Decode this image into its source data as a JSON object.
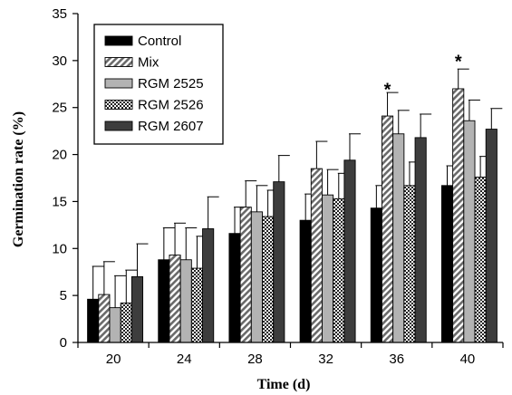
{
  "chart_data": {
    "type": "bar",
    "xlabel": "Time (d)",
    "ylabel": "Germination rate (%)",
    "ylim": [
      0,
      35
    ],
    "yticks": [
      0,
      5,
      10,
      15,
      20,
      25,
      30,
      35
    ],
    "categories": [
      "20",
      "24",
      "28",
      "32",
      "36",
      "40"
    ],
    "legend_position": "top-left",
    "grid": false,
    "series": [
      {
        "name": "Control",
        "pattern": "solid-black",
        "color": "#000000",
        "values": [
          4.6,
          8.8,
          11.6,
          13.0,
          14.3,
          16.7
        ],
        "errors": [
          3.5,
          3.4,
          2.8,
          2.8,
          2.4,
          2.1
        ]
      },
      {
        "name": "Mix",
        "pattern": "diagonal-hatch",
        "color": "#8a8a8a",
        "values": [
          5.1,
          9.3,
          14.4,
          18.5,
          24.1,
          27.0
        ],
        "errors": [
          3.5,
          3.4,
          2.8,
          2.9,
          2.5,
          2.1
        ]
      },
      {
        "name": "RGM 2525",
        "pattern": "solid-gray",
        "color": "#b8b8b8",
        "values": [
          3.7,
          8.8,
          13.9,
          15.7,
          22.2,
          23.6
        ],
        "errors": [
          3.4,
          3.4,
          2.8,
          2.7,
          2.5,
          2.2
        ]
      },
      {
        "name": "RGM 2526",
        "pattern": "checker",
        "color": "#555555",
        "values": [
          4.2,
          7.9,
          13.4,
          15.3,
          16.7,
          17.6
        ],
        "errors": [
          3.5,
          3.4,
          2.8,
          2.7,
          2.5,
          2.2
        ]
      },
      {
        "name": "RGM 2607",
        "pattern": "solid-dark",
        "color": "#3d3d3d",
        "values": [
          7.0,
          12.1,
          17.1,
          19.4,
          21.8,
          22.7
        ],
        "errors": [
          3.5,
          3.4,
          2.8,
          2.8,
          2.5,
          2.2
        ]
      }
    ],
    "annotations": [
      {
        "text": "*",
        "category": "36",
        "value": 27.6
      },
      {
        "text": "*",
        "category": "40",
        "value": 30.6
      }
    ]
  }
}
